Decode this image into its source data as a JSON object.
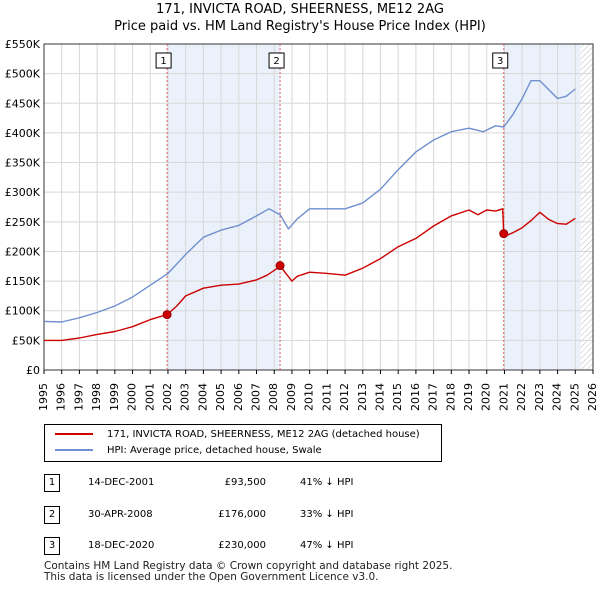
{
  "chart_data": {
    "type": "line",
    "title": "171, INVICTA ROAD, SHEERNESS, ME12 2AG",
    "subtitle": "Price paid vs. HM Land Registry's House Price Index (HPI)",
    "xlim": [
      1995,
      2026
    ],
    "ylim": [
      0,
      550000
    ],
    "x_ticks": [
      1995,
      1996,
      1997,
      1998,
      1999,
      2000,
      2001,
      2002,
      2003,
      2004,
      2005,
      2006,
      2007,
      2008,
      2009,
      2010,
      2011,
      2012,
      2013,
      2014,
      2015,
      2016,
      2017,
      2018,
      2019,
      2020,
      2021,
      2022,
      2023,
      2024,
      2025,
      2026
    ],
    "y_ticks": [
      0,
      50000,
      100000,
      150000,
      200000,
      250000,
      300000,
      350000,
      400000,
      450000,
      500000,
      550000
    ],
    "y_tick_labels": [
      "£0",
      "£50K",
      "£100K",
      "£150K",
      "£200K",
      "£250K",
      "£300K",
      "£350K",
      "£400K",
      "£450K",
      "£500K",
      "£550K"
    ],
    "grid": true,
    "hatched_region_from": 2025.3,
    "series": [
      {
        "name": "171, INVICTA ROAD, SHEERNESS, ME12 2AG (detached house)",
        "color": "#cc0000",
        "x": [
          1995.0,
          1996.0,
          1997.0,
          1998.0,
          1999.0,
          2000.0,
          2001.0,
          2001.95,
          2002.5,
          2003.0,
          2004.0,
          2005.0,
          2006.0,
          2007.0,
          2007.6,
          2008.1,
          2008.33,
          2008.6,
          2009.0,
          2009.3,
          2010.0,
          2011.0,
          2012.0,
          2013.0,
          2014.0,
          2015.0,
          2016.0,
          2017.0,
          2018.0,
          2019.0,
          2019.5,
          2020.0,
          2020.5,
          2020.9,
          2020.96,
          2021.2,
          2021.5,
          2022.0,
          2022.5,
          2023.0,
          2023.5,
          2024.0,
          2024.5,
          2025.0
        ],
        "y": [
          50000,
          50000,
          54000,
          60000,
          65000,
          73000,
          85000,
          93500,
          108000,
          125000,
          138000,
          143000,
          145000,
          152000,
          160000,
          170000,
          176000,
          165000,
          150000,
          158000,
          165000,
          163000,
          160000,
          172000,
          188000,
          208000,
          222000,
          243000,
          260000,
          270000,
          262000,
          270000,
          268000,
          272000,
          230000,
          228000,
          232000,
          240000,
          252000,
          266000,
          254000,
          247000,
          246000,
          256000
        ]
      },
      {
        "name": "HPI: Average price, detached house, Swale",
        "color": "#6f8fcf",
        "x": [
          1995.0,
          1996.0,
          1997.0,
          1998.0,
          1999.0,
          2000.0,
          2001.0,
          2002.0,
          2003.0,
          2004.0,
          2005.0,
          2006.0,
          2007.0,
          2007.7,
          2008.33,
          2008.8,
          2009.3,
          2010.0,
          2011.0,
          2012.0,
          2013.0,
          2014.0,
          2015.0,
          2016.0,
          2017.0,
          2018.0,
          2019.0,
          2019.8,
          2020.5,
          2020.96,
          2021.5,
          2022.0,
          2022.5,
          2023.0,
          2023.5,
          2024.0,
          2024.5,
          2025.0
        ],
        "y": [
          82000,
          81000,
          88000,
          97000,
          108000,
          123000,
          143000,
          163000,
          195000,
          224000,
          236000,
          244000,
          260000,
          272000,
          262000,
          238000,
          255000,
          272000,
          272000,
          272000,
          282000,
          305000,
          338000,
          368000,
          388000,
          402000,
          408000,
          402000,
          412000,
          410000,
          432000,
          458000,
          488000,
          488000,
          473000,
          458000,
          462000,
          474000
        ]
      }
    ],
    "markers": [
      {
        "label": "1",
        "x": 2001.95,
        "y": 93500
      },
      {
        "label": "2",
        "x": 2008.33,
        "y": 176000
      },
      {
        "label": "3",
        "x": 2020.96,
        "y": 230000
      }
    ]
  },
  "legend": {
    "property_label": "171, INVICTA ROAD, SHEERNESS, ME12 2AG (detached house)",
    "hpi_label": "HPI: Average price, detached house, Swale"
  },
  "sales": [
    {
      "num": "1",
      "date": "14-DEC-2001",
      "price": "£93,500",
      "diff": "41% ↓ HPI"
    },
    {
      "num": "2",
      "date": "30-APR-2008",
      "price": "£176,000",
      "diff": "33% ↓ HPI"
    },
    {
      "num": "3",
      "date": "18-DEC-2020",
      "price": "£230,000",
      "diff": "47% ↓ HPI"
    }
  ],
  "footer": {
    "line1": "Contains HM Land Registry data © Crown copyright and database right 2025.",
    "line2": "This data is licensed under the Open Government Licence v3.0."
  }
}
